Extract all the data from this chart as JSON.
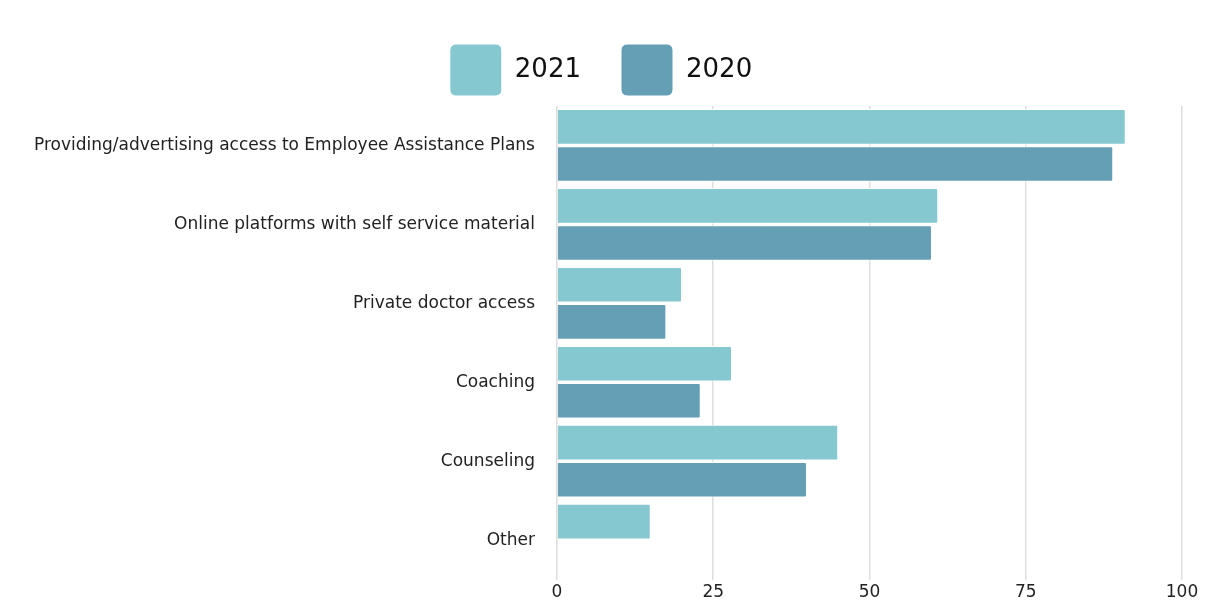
{
  "chart_data": {
    "type": "bar",
    "orientation": "horizontal",
    "categories": [
      "Providing/advertising access to Employee Assistance Plans",
      "Online platforms with self service material",
      "Private doctor access",
      "Coaching",
      "Counseling",
      "Other"
    ],
    "series": [
      {
        "name": "2021",
        "color": "#86c8d0",
        "values": [
          91,
          61,
          20,
          28,
          45,
          15
        ]
      },
      {
        "name": "2020",
        "color": "#659fb5",
        "values": [
          89,
          60,
          17.5,
          23,
          40,
          null
        ]
      }
    ],
    "xlim": [
      0,
      100
    ],
    "xticks": [
      0,
      25,
      50,
      75,
      100
    ],
    "grid": "x",
    "legend": "top"
  }
}
